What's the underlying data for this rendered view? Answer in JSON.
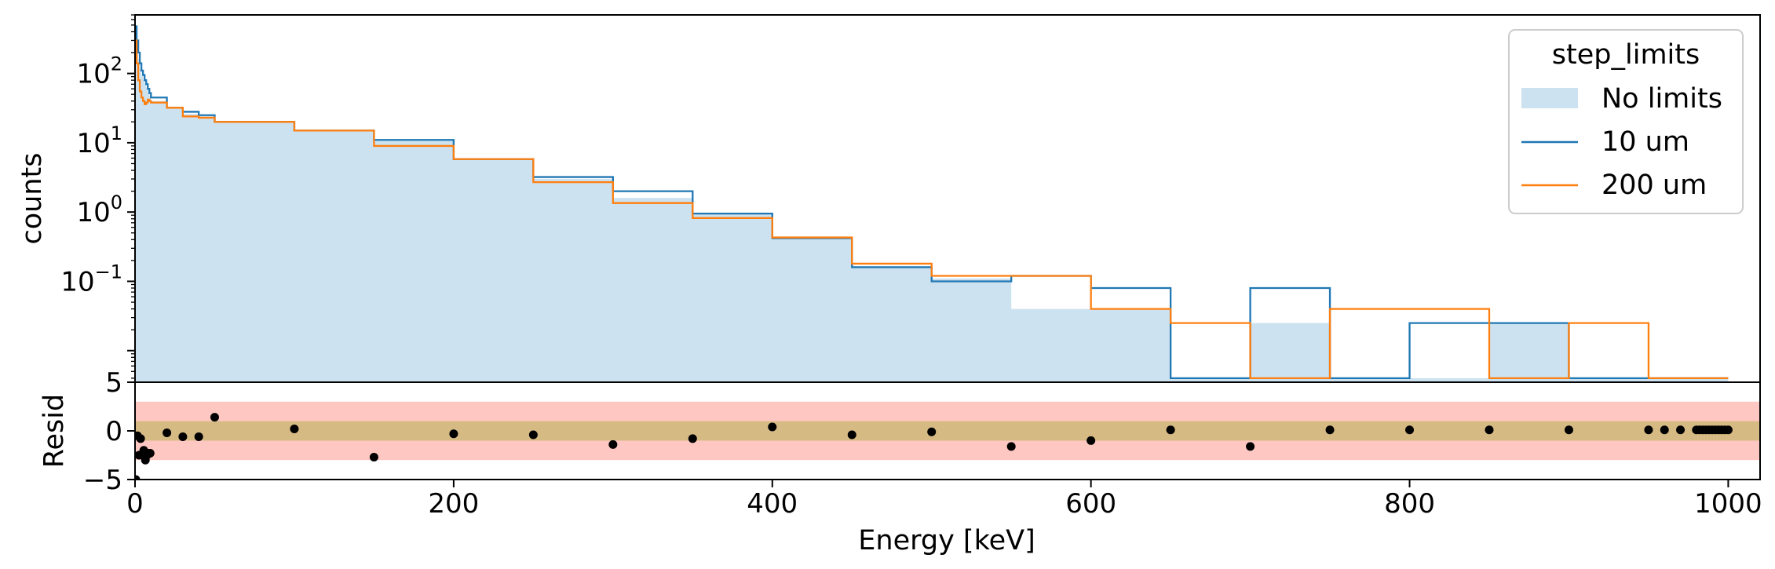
{
  "chart_data": [
    {
      "type": "histogram",
      "panel": "main",
      "ylabel": "counts",
      "yscale": "log",
      "xlim": [
        0,
        1020
      ],
      "ylim": [
        0.0035,
        700
      ],
      "yticks": [
        {
          "value": 100,
          "base": "10",
          "exp": "2"
        },
        {
          "value": 10,
          "base": "10",
          "exp": "1"
        },
        {
          "value": 1,
          "base": "10",
          "exp": "0"
        },
        {
          "value": 0.1,
          "base": "10",
          "exp": "−1"
        }
      ],
      "edges": [
        0,
        1,
        2,
        3,
        4,
        5,
        6,
        7,
        8,
        9,
        10,
        20,
        30,
        40,
        50,
        100,
        150,
        200,
        250,
        300,
        350,
        400,
        450,
        500,
        550,
        600,
        650,
        700,
        750,
        800,
        850,
        900,
        950,
        1000
      ],
      "series": [
        {
          "name": "No limits",
          "style": "fill",
          "values": [
            460,
            250,
            160,
            115,
            92,
            80,
            72,
            62,
            55,
            48,
            40,
            32,
            26,
            24,
            20,
            15,
            11,
            5.8,
            3.0,
            1.6,
            0.95,
            0.42,
            0.16,
            0.11,
            0.04,
            0.04,
            0.004,
            0.025,
            0.004,
            0.004,
            0.025,
            0.004,
            0.004
          ]
        },
        {
          "name": "10 um",
          "style": "step",
          "values": [
            480,
            300,
            200,
            140,
            110,
            95,
            80,
            70,
            60,
            52,
            45,
            32,
            28,
            25,
            20,
            15,
            11,
            5.8,
            3.2,
            2.0,
            0.95,
            0.42,
            0.16,
            0.1,
            0.12,
            0.08,
            0.004,
            0.08,
            0.004,
            0.025,
            0.025,
            0.004,
            0.004
          ]
        },
        {
          "name": "200 um",
          "style": "step",
          "values": [
            300,
            140,
            80,
            55,
            45,
            40,
            36,
            38,
            42,
            40,
            38,
            32,
            24,
            23,
            20,
            15,
            9,
            5.8,
            2.7,
            1.35,
            0.82,
            0.43,
            0.18,
            0.12,
            0.12,
            0.04,
            0.025,
            0.004,
            0.04,
            0.04,
            0.004,
            0.025,
            0.004
          ]
        }
      ],
      "colors": {
        "No limits": "#cde2f0",
        "10 um": "#1f77b4",
        "200 um": "#ff7f0e"
      },
      "legend": {
        "title": "step_limits",
        "placement": "top-right"
      }
    },
    {
      "type": "scatter",
      "panel": "residual",
      "xlabel": "Energy [keV]",
      "ylabel": "Resid",
      "xlim": [
        0,
        1020
      ],
      "ylim": [
        -5,
        5
      ],
      "xticks": [
        0,
        200,
        400,
        600,
        800,
        1000
      ],
      "yticks": [
        {
          "value": 5,
          "label": "5"
        },
        {
          "value": 0,
          "label": "0"
        },
        {
          "value": -5,
          "label": "−5"
        }
      ],
      "bands": [
        {
          "range": [
            -3,
            3
          ],
          "color": "#ffc7c2"
        },
        {
          "range": [
            -1,
            1
          ],
          "color": "#d6ba84"
        }
      ],
      "points": [
        [
          0.5,
          -5
        ],
        [
          1.5,
          -0.5
        ],
        [
          2.5,
          -2.5
        ],
        [
          3.5,
          -0.8
        ],
        [
          4.5,
          -2.4
        ],
        [
          5.5,
          -2
        ],
        [
          6.5,
          -3
        ],
        [
          7.5,
          -2.5
        ],
        [
          8.5,
          -2.3
        ],
        [
          9.5,
          -2.3
        ],
        [
          20,
          -0.2
        ],
        [
          30,
          -0.6
        ],
        [
          40,
          -0.6
        ],
        [
          50,
          1.4
        ],
        [
          100,
          0.2
        ],
        [
          150,
          -2.7
        ],
        [
          200,
          -0.3
        ],
        [
          250,
          -0.4
        ],
        [
          300,
          -1.4
        ],
        [
          350,
          -0.8
        ],
        [
          400,
          0.4
        ],
        [
          450,
          -0.4
        ],
        [
          500,
          -0.1
        ],
        [
          550,
          -1.6
        ],
        [
          600,
          -1
        ],
        [
          650,
          0.1
        ],
        [
          700,
          -1.6
        ],
        [
          750,
          0.1
        ],
        [
          800,
          0.1
        ],
        [
          850,
          0.1
        ],
        [
          900,
          0.1
        ],
        [
          950,
          0.1
        ],
        [
          960,
          0.1
        ],
        [
          970,
          0.1
        ],
        [
          980,
          0.1
        ],
        [
          982,
          0.1
        ],
        [
          984,
          0.1
        ],
        [
          986,
          0.1
        ],
        [
          988,
          0.1
        ],
        [
          990,
          0.1
        ],
        [
          992,
          0.1
        ],
        [
          994,
          0.1
        ],
        [
          996,
          0.1
        ],
        [
          998,
          0.1
        ],
        [
          1000,
          0.1
        ]
      ]
    }
  ]
}
